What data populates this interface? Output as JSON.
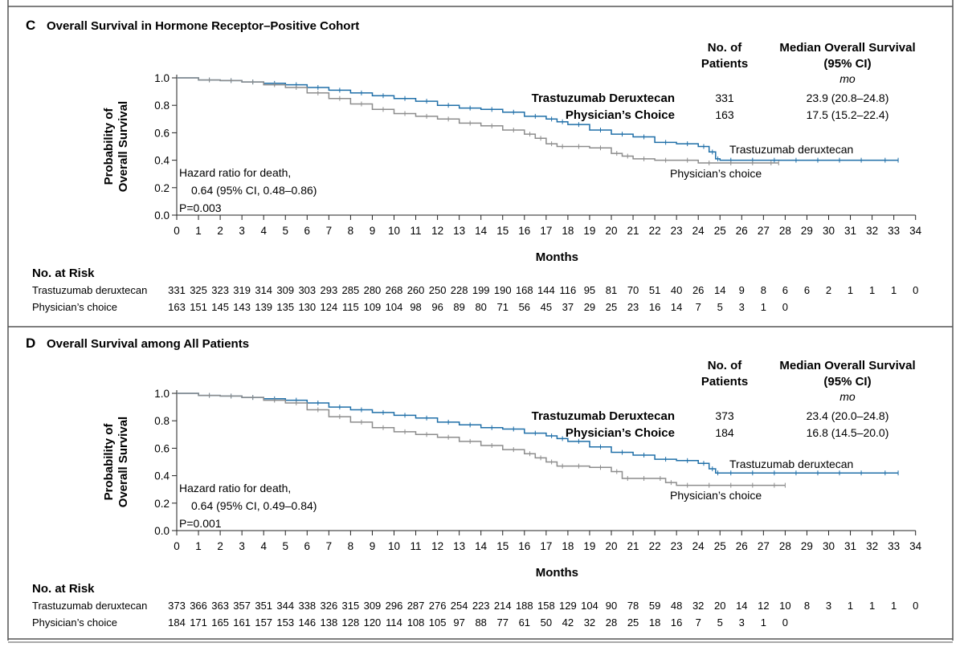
{
  "colors": {
    "td": "#1f6fa8",
    "pc": "#8c8c8c",
    "border": "#555555"
  },
  "panels": [
    {
      "letter": "C",
      "title": "Overall Survival in Hormone Receptor–Positive Cohort",
      "ylabel": [
        "Probability of",
        "Overall Survival"
      ],
      "xlabel": "Months",
      "hr_lines": [
        "Hazard ratio for death,",
        "0.64 (95% CI, 0.48–0.86)",
        "P=0.003"
      ],
      "curve_labels": {
        "td": "Trastuzumab deruxtecan",
        "pc": "Physician’s choice"
      },
      "table_header": {
        "patients": [
          "No. of",
          "Patients"
        ],
        "median": [
          "Median Overall Survival",
          "(95% CI)"
        ],
        "unit": "mo"
      },
      "table_rows": [
        {
          "name": "Trastuzumab Deruxtecan",
          "patients": "331",
          "median": "23.9 (20.8–24.8)"
        },
        {
          "name": "Physician’s Choice",
          "patients": "163",
          "median": "17.5 (15.2–22.4)"
        }
      ],
      "risk_title": "No. at Risk",
      "risk_rows": [
        {
          "label": "Trastuzumab deruxtecan",
          "values": [
            "331",
            "325",
            "323",
            "319",
            "314",
            "309",
            "303",
            "293",
            "285",
            "280",
            "268",
            "260",
            "250",
            "228",
            "199",
            "190",
            "168",
            "144",
            "116",
            "95",
            "81",
            "70",
            "51",
            "40",
            "26",
            "14",
            "9",
            "8",
            "6",
            "6",
            "2",
            "1",
            "1",
            "1",
            "0"
          ]
        },
        {
          "label": "Physician’s choice",
          "values": [
            "163",
            "151",
            "145",
            "143",
            "139",
            "135",
            "130",
            "124",
            "115",
            "109",
            "104",
            "98",
            "96",
            "89",
            "80",
            "71",
            "56",
            "45",
            "37",
            "29",
            "25",
            "23",
            "16",
            "14",
            "7",
            "5",
            "3",
            "1",
            "0"
          ]
        }
      ]
    },
    {
      "letter": "D",
      "title": "Overall Survival among All Patients",
      "ylabel": [
        "Probability of",
        "Overall Survival"
      ],
      "xlabel": "Months",
      "hr_lines": [
        "Hazard ratio for death,",
        "0.64 (95% CI, 0.49–0.84)",
        "P=0.001"
      ],
      "curve_labels": {
        "td": "Trastuzumab deruxtecan",
        "pc": "Physician’s choice"
      },
      "table_header": {
        "patients": [
          "No. of",
          "Patients"
        ],
        "median": [
          "Median Overall Survival",
          "(95% CI)"
        ],
        "unit": "mo"
      },
      "table_rows": [
        {
          "name": "Trastuzumab Deruxtecan",
          "patients": "373",
          "median": "23.4 (20.0–24.8)"
        },
        {
          "name": "Physician’s Choice",
          "patients": "184",
          "median": "16.8 (14.5–20.0)"
        }
      ],
      "risk_title": "No. at Risk",
      "risk_rows": [
        {
          "label": "Trastuzumab deruxtecan",
          "values": [
            "373",
            "366",
            "363",
            "357",
            "351",
            "344",
            "338",
            "326",
            "315",
            "309",
            "296",
            "287",
            "276",
            "254",
            "223",
            "214",
            "188",
            "158",
            "129",
            "104",
            "90",
            "78",
            "59",
            "48",
            "32",
            "20",
            "14",
            "12",
            "10",
            "8",
            "3",
            "1",
            "1",
            "1",
            "0"
          ]
        },
        {
          "label": "Physician’s choice",
          "values": [
            "184",
            "171",
            "165",
            "161",
            "157",
            "153",
            "146",
            "138",
            "128",
            "120",
            "114",
            "108",
            "105",
            "97",
            "88",
            "77",
            "61",
            "50",
            "42",
            "32",
            "28",
            "25",
            "18",
            "16",
            "7",
            "5",
            "3",
            "1",
            "0"
          ]
        }
      ]
    }
  ],
  "chart_data": [
    {
      "type": "line",
      "title": "Overall Survival in Hormone Receptor–Positive Cohort",
      "xlabel": "Months",
      "ylabel": "Probability of Overall Survival",
      "xlim": [
        0,
        34
      ],
      "ylim": [
        0,
        1.0
      ],
      "xticks": [
        "0",
        "1",
        "2",
        "3",
        "4",
        "5",
        "6",
        "7",
        "8",
        "9",
        "10",
        "11",
        "12",
        "13",
        "14",
        "15",
        "16",
        "17",
        "18",
        "19",
        "20",
        "21",
        "22",
        "23",
        "24",
        "25",
        "26",
        "27",
        "28",
        "29",
        "30",
        "31",
        "32",
        "33",
        "34"
      ],
      "yticks": [
        "0.0",
        "0.2",
        "0.4",
        "0.6",
        "0.8",
        "1.0"
      ],
      "series": [
        {
          "name": "Trastuzumab deruxtecan",
          "x": [
            0,
            1,
            2,
            3,
            4,
            5,
            6,
            7,
            8,
            9,
            10,
            11,
            12,
            13,
            14,
            15,
            16,
            17,
            17.5,
            18,
            19,
            20,
            21,
            22,
            23,
            24,
            24.5,
            24.8,
            25,
            26,
            27,
            28,
            29,
            30,
            31,
            32,
            33.2
          ],
          "y": [
            1.0,
            0.985,
            0.98,
            0.97,
            0.96,
            0.95,
            0.93,
            0.91,
            0.89,
            0.87,
            0.85,
            0.83,
            0.8,
            0.78,
            0.77,
            0.75,
            0.72,
            0.7,
            0.68,
            0.66,
            0.62,
            0.59,
            0.57,
            0.53,
            0.52,
            0.5,
            0.46,
            0.41,
            0.4,
            0.4,
            0.4,
            0.4,
            0.4,
            0.4,
            0.4,
            0.4,
            0.4
          ]
        },
        {
          "name": "Physician’s choice",
          "x": [
            0,
            1,
            2,
            3,
            4,
            5,
            6,
            7,
            8,
            9,
            10,
            11,
            12,
            13,
            14,
            15,
            16,
            16.5,
            17,
            17.5,
            18,
            19,
            20,
            20.5,
            21,
            22,
            23,
            24,
            25,
            26,
            27,
            27.7
          ],
          "y": [
            1.0,
            0.985,
            0.98,
            0.97,
            0.95,
            0.93,
            0.89,
            0.85,
            0.81,
            0.77,
            0.74,
            0.72,
            0.7,
            0.67,
            0.65,
            0.62,
            0.59,
            0.56,
            0.52,
            0.5,
            0.5,
            0.49,
            0.45,
            0.43,
            0.41,
            0.4,
            0.4,
            0.38,
            0.38,
            0.38,
            0.38,
            0.38
          ]
        }
      ]
    },
    {
      "type": "line",
      "title": "Overall Survival among All Patients",
      "xlabel": "Months",
      "ylabel": "Probability of Overall Survival",
      "xlim": [
        0,
        34
      ],
      "ylim": [
        0,
        1.0
      ],
      "xticks": [
        "0",
        "1",
        "2",
        "3",
        "4",
        "5",
        "6",
        "7",
        "8",
        "9",
        "10",
        "11",
        "12",
        "13",
        "14",
        "15",
        "16",
        "17",
        "18",
        "19",
        "20",
        "21",
        "22",
        "23",
        "24",
        "25",
        "26",
        "27",
        "28",
        "29",
        "30",
        "31",
        "32",
        "33",
        "34"
      ],
      "yticks": [
        "0.0",
        "0.2",
        "0.4",
        "0.6",
        "0.8",
        "1.0"
      ],
      "series": [
        {
          "name": "Trastuzumab deruxtecan",
          "x": [
            0,
            1,
            2,
            3,
            4,
            5,
            6,
            7,
            8,
            9,
            10,
            11,
            12,
            13,
            14,
            15,
            16,
            17,
            17.5,
            18,
            19,
            20,
            21,
            22,
            23,
            24,
            24.5,
            24.8,
            25,
            26,
            27,
            28,
            29,
            30,
            31,
            32,
            33.2
          ],
          "y": [
            1.0,
            0.985,
            0.98,
            0.97,
            0.96,
            0.95,
            0.93,
            0.9,
            0.88,
            0.86,
            0.84,
            0.82,
            0.79,
            0.77,
            0.75,
            0.74,
            0.71,
            0.69,
            0.67,
            0.65,
            0.61,
            0.57,
            0.55,
            0.52,
            0.51,
            0.49,
            0.45,
            0.42,
            0.42,
            0.42,
            0.42,
            0.42,
            0.42,
            0.42,
            0.42,
            0.42,
            0.42
          ]
        },
        {
          "name": "Physician’s choice",
          "x": [
            0,
            1,
            2,
            3,
            4,
            5,
            6,
            7,
            8,
            9,
            10,
            11,
            12,
            13,
            14,
            15,
            16,
            16.5,
            17,
            17.5,
            18,
            19,
            20,
            20.5,
            21,
            22,
            22.5,
            23,
            24,
            25,
            26,
            27,
            28
          ],
          "y": [
            1.0,
            0.985,
            0.98,
            0.97,
            0.95,
            0.93,
            0.88,
            0.83,
            0.79,
            0.75,
            0.72,
            0.7,
            0.68,
            0.65,
            0.62,
            0.59,
            0.56,
            0.53,
            0.5,
            0.47,
            0.47,
            0.46,
            0.43,
            0.38,
            0.38,
            0.38,
            0.35,
            0.33,
            0.33,
            0.33,
            0.33,
            0.33,
            0.33
          ]
        }
      ]
    }
  ]
}
